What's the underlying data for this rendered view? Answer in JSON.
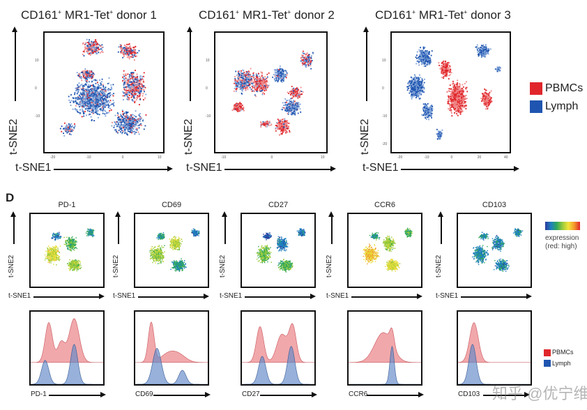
{
  "panel_c": {
    "plots": [
      {
        "title_pre": "CD161",
        "title_mid": " MR1-Tet",
        "title_post": " donor 1",
        "sup": "+",
        "xticks": [
          "-20",
          "-10",
          "0",
          "10"
        ],
        "yticks": [
          "10",
          "0",
          "-10"
        ]
      },
      {
        "title_pre": "CD161",
        "title_mid": " MR1-Tet",
        "title_post": " donor 2",
        "sup": "+",
        "xticks": [
          "-10",
          "0",
          "10"
        ],
        "yticks": [
          "10",
          "0",
          "-10"
        ]
      },
      {
        "title_pre": "CD161",
        "title_mid": " MR1-Tet",
        "title_post": " donor 3",
        "sup": "+",
        "xticks": [
          "-20",
          "-10",
          "0",
          "20",
          "40"
        ],
        "yticks": [
          "10",
          "0",
          "-10",
          "-20"
        ]
      }
    ],
    "xlabel": "t-SNE1",
    "ylabel": "t-SNE2",
    "legend": [
      {
        "label": "PBMCs",
        "color": "#e0262b"
      },
      {
        "label": "Lymph",
        "color": "#1f55b0"
      }
    ]
  },
  "panel_d": {
    "letter": "D",
    "markers": [
      "PD-1",
      "CD69",
      "CD27",
      "CCR6",
      "CD103"
    ],
    "xlabel": "t-SNE1",
    "ylabel": "t-SNE2",
    "colorbar_label_1": "expression",
    "colorbar_label_2": "(red: high)",
    "legend": [
      {
        "label": "PBMCs",
        "color": "#e0262b"
      },
      {
        "label": "Lymph",
        "color": "#1f55b0"
      }
    ]
  },
  "watermark": "知乎 @优宁维"
}
